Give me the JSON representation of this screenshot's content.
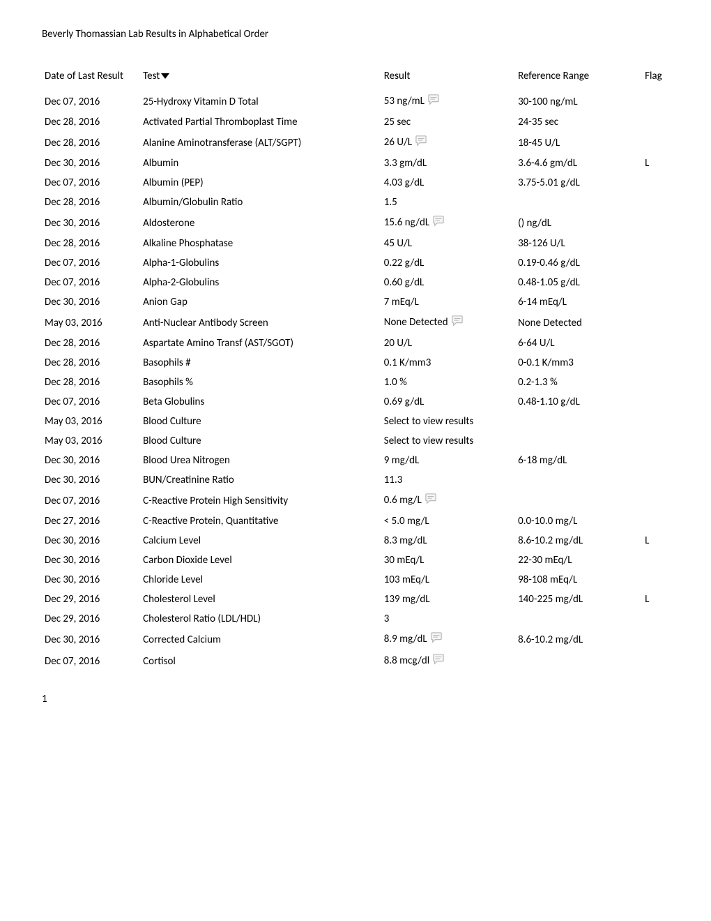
{
  "header": "Beverly Thomassian Lab Results in Alphabetical Order",
  "columns": {
    "date": "Date of Last Result",
    "test": "Test",
    "result": "Result",
    "ref": "Reference Range",
    "flag": "Flag"
  },
  "icon_stroke": "#b0b0b0",
  "icon_fill": "#f5f5f5",
  "rows": [
    {
      "date": "Dec 07, 2016",
      "test": "25-Hydroxy Vitamin D Total",
      "result": "53 ng/mL",
      "icon": true,
      "ref": "30-100 ng/mL",
      "flag": ""
    },
    {
      "date": "Dec 28, 2016",
      "test": "Activated Partial Thromboplast Time",
      "result": "25 sec",
      "icon": false,
      "ref": "24-35 sec",
      "flag": ""
    },
    {
      "date": "Dec 28, 2016",
      "test": "Alanine Aminotransferase (ALT/SGPT)",
      "result": "26 U/L",
      "icon": true,
      "ref": "18-45 U/L",
      "flag": ""
    },
    {
      "date": "Dec 30, 2016",
      "test": "Albumin",
      "result": "3.3 gm/dL",
      "icon": false,
      "ref": "3.6-4.6 gm/dL",
      "flag": "L"
    },
    {
      "date": "Dec 07, 2016",
      "test": "Albumin (PEP)",
      "result": "4.03 g/dL",
      "icon": false,
      "ref": "3.75-5.01 g/dL",
      "flag": ""
    },
    {
      "date": "Dec 28, 2016",
      "test": "Albumin/Globulin Ratio",
      "result": "1.5",
      "icon": false,
      "ref": "",
      "flag": ""
    },
    {
      "date": "Dec 30, 2016",
      "test": "Aldosterone",
      "result": "15.6 ng/dL",
      "icon": true,
      "ref": "() ng/dL",
      "flag": ""
    },
    {
      "date": "Dec 28, 2016",
      "test": "Alkaline Phosphatase",
      "result": "45 U/L",
      "icon": false,
      "ref": "38-126 U/L",
      "flag": ""
    },
    {
      "date": "Dec 07, 2016",
      "test": "Alpha-1-Globulins",
      "result": "0.22 g/dL",
      "icon": false,
      "ref": "0.19-0.46 g/dL",
      "flag": ""
    },
    {
      "date": "Dec 07, 2016",
      "test": "Alpha-2-Globulins",
      "result": "0.60 g/dL",
      "icon": false,
      "ref": "0.48-1.05 g/dL",
      "flag": ""
    },
    {
      "date": "Dec 30, 2016",
      "test": "Anion Gap",
      "result": "7 mEq/L",
      "icon": false,
      "ref": "6-14 mEq/L",
      "flag": ""
    },
    {
      "date": "May 03, 2016",
      "test": "Anti-Nuclear Antibody Screen",
      "result": "None Detected",
      "icon": true,
      "ref": "None Detected",
      "flag": ""
    },
    {
      "date": "Dec 28, 2016",
      "test": "Aspartate Amino Transf (AST/SGOT)",
      "result": "20 U/L",
      "icon": false,
      "ref": "6-64 U/L",
      "flag": ""
    },
    {
      "date": "Dec 28, 2016",
      "test": "Basophils #",
      "result": "0.1 K/mm3",
      "icon": false,
      "ref": "0-0.1 K/mm3",
      "flag": ""
    },
    {
      "date": "Dec 28, 2016",
      "test": "Basophils %",
      "result": "1.0 %",
      "icon": false,
      "ref": "0.2-1.3 %",
      "flag": ""
    },
    {
      "date": "Dec 07, 2016",
      "test": "Beta Globulins",
      "result": "0.69 g/dL",
      "icon": false,
      "ref": "0.48-1.10 g/dL",
      "flag": ""
    },
    {
      "date": "May 03, 2016",
      "test": "Blood Culture",
      "result": "Select to view results",
      "icon": false,
      "ref": "",
      "flag": ""
    },
    {
      "date": "May 03, 2016",
      "test": "Blood Culture",
      "result": "Select to view results",
      "icon": false,
      "ref": "",
      "flag": ""
    },
    {
      "date": "Dec 30, 2016",
      "test": "Blood Urea Nitrogen",
      "result": "9 mg/dL",
      "icon": false,
      "ref": "6-18 mg/dL",
      "flag": ""
    },
    {
      "date": "Dec 30, 2016",
      "test": "BUN/Creatinine Ratio",
      "result": "11.3",
      "icon": false,
      "ref": "",
      "flag": ""
    },
    {
      "date": "Dec 07, 2016",
      "test": "C-Reactive Protein High Sensitivity",
      "result": "0.6 mg/L",
      "icon": true,
      "ref": "",
      "flag": ""
    },
    {
      "date": "Dec 27, 2016",
      "test": "C-Reactive Protein, Quantitative",
      "result": "< 5.0 mg/L",
      "icon": false,
      "ref": "0.0-10.0 mg/L",
      "flag": ""
    },
    {
      "date": "Dec 30, 2016",
      "test": "Calcium Level",
      "result": "8.3 mg/dL",
      "icon": false,
      "ref": "8.6-10.2 mg/dL",
      "flag": "L"
    },
    {
      "date": "Dec 30, 2016",
      "test": "Carbon Dioxide Level",
      "result": "30 mEq/L",
      "icon": false,
      "ref": "22-30 mEq/L",
      "flag": ""
    },
    {
      "date": "Dec 30, 2016",
      "test": "Chloride Level",
      "result": "103 mEq/L",
      "icon": false,
      "ref": "98-108 mEq/L",
      "flag": ""
    },
    {
      "date": "Dec 29, 2016",
      "test": "Cholesterol Level",
      "result": "139 mg/dL",
      "icon": false,
      "ref": "140-225 mg/dL",
      "flag": "L"
    },
    {
      "date": "Dec 29, 2016",
      "test": "Cholesterol Ratio (LDL/HDL)",
      "result": "3",
      "icon": false,
      "ref": "",
      "flag": ""
    },
    {
      "date": "Dec 30, 2016",
      "test": "Corrected Calcium",
      "result": "8.9 mg/dL",
      "icon": true,
      "ref": "8.6-10.2 mg/dL",
      "flag": ""
    },
    {
      "date": "Dec 07, 2016",
      "test": "Cortisol",
      "result": "8.8 mcg/dl",
      "icon": true,
      "ref": "",
      "flag": ""
    }
  ],
  "page_number": "1"
}
